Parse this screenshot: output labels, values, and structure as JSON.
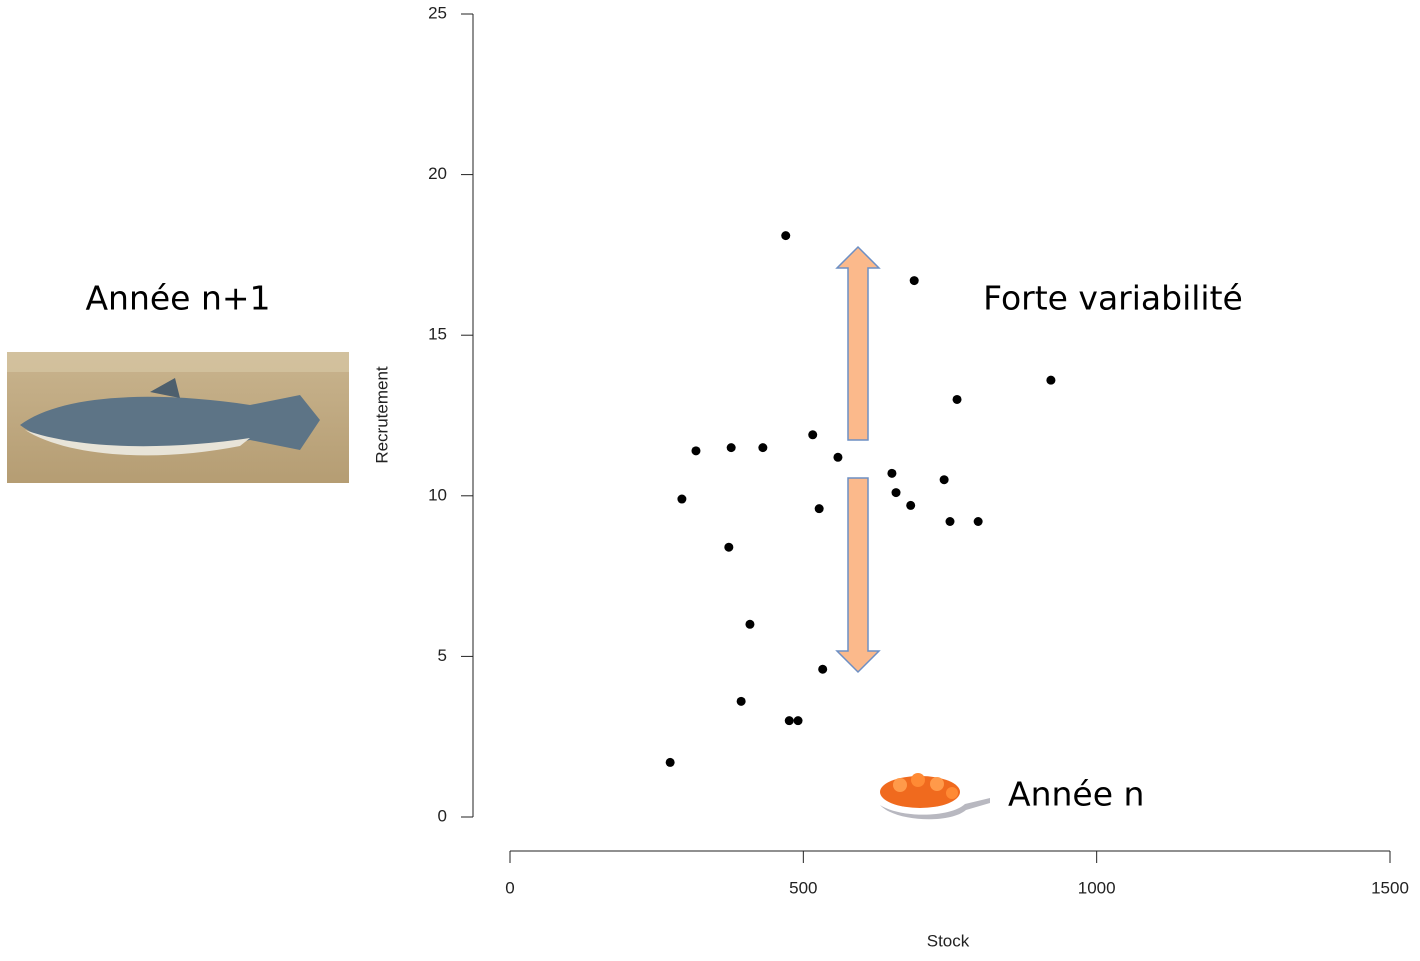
{
  "chart_data": {
    "type": "scatter",
    "xlabel": "Stock",
    "ylabel": "Recrutement",
    "annotations": [
      "Année n+1",
      "Forte variabilité",
      "Année n"
    ],
    "x": [
      273,
      293,
      317,
      377,
      373,
      394,
      409,
      431,
      470,
      476,
      491,
      516,
      527,
      533,
      559,
      651,
      658,
      683,
      689,
      740,
      750,
      762,
      798,
      922
    ],
    "series": [
      {
        "color": "#000000",
        "values": [
          1.7,
          9.9,
          11.4,
          11.5,
          8.4,
          3.6,
          6.0,
          11.5,
          18.1,
          3.0,
          3.0,
          11.9,
          9.6,
          4.6,
          11.2,
          10.7,
          10.1,
          9.7,
          16.7,
          10.5,
          9.2,
          13.0,
          9.2,
          13.6
        ]
      }
    ],
    "xlim": [
      0,
      1500
    ],
    "xticks": [
      0,
      500,
      1000,
      1500
    ],
    "ylim": [
      0,
      25
    ],
    "yticks": [
      0,
      5,
      10,
      15,
      20,
      25
    ]
  }
}
